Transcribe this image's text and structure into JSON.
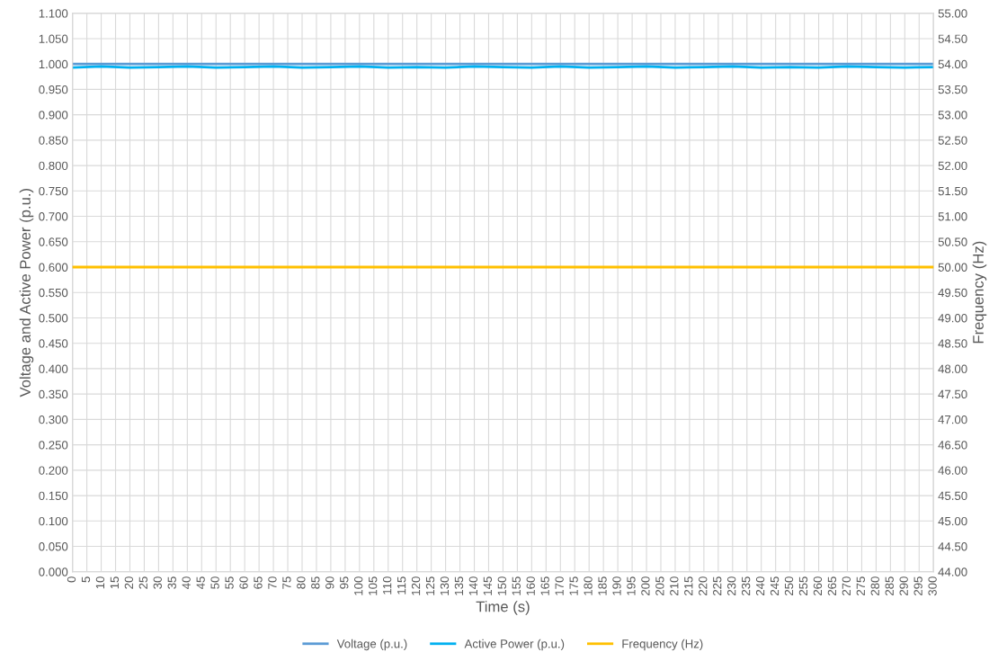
{
  "chart_data": {
    "type": "line",
    "xlabel": "Time (s)",
    "ylabel": "Voltage and Active Power (p.u.)",
    "y2label": "Frequency (Hz)",
    "x": [
      0,
      10,
      20,
      30,
      40,
      50,
      60,
      70,
      80,
      90,
      100,
      110,
      120,
      130,
      140,
      150,
      160,
      170,
      180,
      190,
      200,
      210,
      220,
      230,
      240,
      250,
      260,
      270,
      280,
      290,
      300
    ],
    "series": [
      {
        "name": "Voltage (p.u.)",
        "color": "#5b9bd5",
        "values": [
          1.0,
          1.0,
          1.0,
          1.0,
          1.0,
          1.0,
          1.0,
          1.0,
          1.0,
          1.0,
          1.0,
          1.0,
          1.0,
          1.0,
          1.0,
          1.0,
          1.0,
          1.0,
          1.0,
          1.0,
          1.0,
          1.0,
          1.0,
          1.0,
          1.0,
          1.0,
          1.0,
          1.0,
          1.0,
          1.0,
          1.0
        ]
      },
      {
        "name": "Active Power (p.u.)",
        "color": "#00b0f0",
        "values": [
          0.993,
          0.995,
          0.993,
          0.994,
          0.995,
          0.993,
          0.994,
          0.995,
          0.993,
          0.994,
          0.995,
          0.993,
          0.994,
          0.993,
          0.995,
          0.994,
          0.993,
          0.995,
          0.993,
          0.994,
          0.995,
          0.993,
          0.994,
          0.995,
          0.993,
          0.994,
          0.993,
          0.995,
          0.994,
          0.993,
          0.994
        ]
      },
      {
        "name": "Frequency (Hz)",
        "color": "#ffc000",
        "axis": "y2",
        "values": [
          50,
          50,
          50,
          50,
          50,
          50,
          50,
          50,
          50,
          50,
          50,
          50,
          50,
          50,
          50,
          50,
          50,
          50,
          50,
          50,
          50,
          50,
          50,
          50,
          50,
          50,
          50,
          50,
          50,
          50,
          50
        ]
      }
    ],
    "xlim": [
      0,
      300
    ],
    "xticks": [
      0,
      5,
      10,
      15,
      20,
      25,
      30,
      35,
      40,
      45,
      50,
      55,
      60,
      65,
      70,
      75,
      80,
      85,
      90,
      95,
      100,
      105,
      110,
      115,
      120,
      125,
      130,
      135,
      140,
      145,
      150,
      155,
      160,
      165,
      170,
      175,
      180,
      185,
      190,
      195,
      200,
      205,
      210,
      215,
      220,
      225,
      230,
      235,
      240,
      245,
      250,
      255,
      260,
      265,
      270,
      275,
      280,
      285,
      290,
      295,
      300
    ],
    "ylim": [
      0,
      1.1
    ],
    "yticks": [
      {
        "value": 0,
        "label": "0.000"
      },
      {
        "value": 0.05,
        "label": "0.050"
      },
      {
        "value": 0.1,
        "label": "0.100"
      },
      {
        "value": 0.15,
        "label": "0.150"
      },
      {
        "value": 0.2,
        "label": "0.200"
      },
      {
        "value": 0.25,
        "label": "0.250"
      },
      {
        "value": 0.3,
        "label": "0.300"
      },
      {
        "value": 0.35,
        "label": "0.350"
      },
      {
        "value": 0.4,
        "label": "0.400"
      },
      {
        "value": 0.45,
        "label": "0.450"
      },
      {
        "value": 0.5,
        "label": "0.500"
      },
      {
        "value": 0.55,
        "label": "0.550"
      },
      {
        "value": 0.6,
        "label": "0.600"
      },
      {
        "value": 0.65,
        "label": "0.650"
      },
      {
        "value": 0.7,
        "label": "0.700"
      },
      {
        "value": 0.75,
        "label": "0.750"
      },
      {
        "value": 0.8,
        "label": "0.800"
      },
      {
        "value": 0.85,
        "label": "0.850"
      },
      {
        "value": 0.9,
        "label": "0.900"
      },
      {
        "value": 0.95,
        "label": "0.950"
      },
      {
        "value": 1.0,
        "label": "1.000"
      },
      {
        "value": 1.05,
        "label": "1.050"
      },
      {
        "value": 1.1,
        "label": "1.100"
      }
    ],
    "y2lim": [
      44,
      55
    ],
    "y2ticks": [
      {
        "value": 44,
        "label": "44.00"
      },
      {
        "value": 44.5,
        "label": "44.50"
      },
      {
        "value": 45,
        "label": "45.00"
      },
      {
        "value": 45.5,
        "label": "45.50"
      },
      {
        "value": 46,
        "label": "46.00"
      },
      {
        "value": 46.5,
        "label": "46.50"
      },
      {
        "value": 47,
        "label": "47.00"
      },
      {
        "value": 47.5,
        "label": "47.50"
      },
      {
        "value": 48,
        "label": "48.00"
      },
      {
        "value": 48.5,
        "label": "48.50"
      },
      {
        "value": 49,
        "label": "49.00"
      },
      {
        "value": 49.5,
        "label": "49.50"
      },
      {
        "value": 50,
        "label": "50.00"
      },
      {
        "value": 50.5,
        "label": "50.50"
      },
      {
        "value": 51,
        "label": "51.00"
      },
      {
        "value": 51.5,
        "label": "51.50"
      },
      {
        "value": 52,
        "label": "52.00"
      },
      {
        "value": 52.5,
        "label": "52.50"
      },
      {
        "value": 53,
        "label": "53.00"
      },
      {
        "value": 53.5,
        "label": "53.50"
      },
      {
        "value": 54,
        "label": "54.00"
      },
      {
        "value": 54.5,
        "label": "54.50"
      },
      {
        "value": 55,
        "label": "55.00"
      }
    ],
    "grid": true,
    "legend": "bottom",
    "marker": "none",
    "line_style": "solid"
  }
}
